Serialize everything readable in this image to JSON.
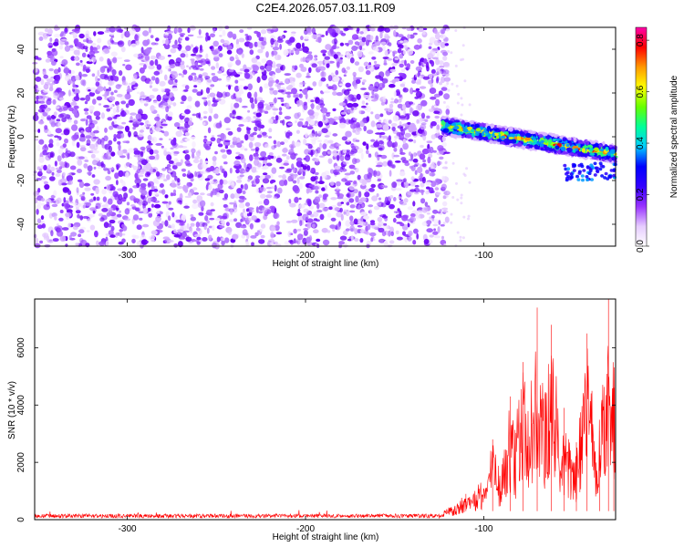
{
  "figure": {
    "title": "C2E4.2026.057.03.11.R09"
  },
  "chart_data": [
    {
      "type": "heatmap",
      "name": "spectrogram",
      "title": "C2E4.2026.057.03.11.R09",
      "xlabel": "Height of straight line (km)",
      "ylabel": "Frequency (Hz)",
      "xlim": [
        -352,
        -26
      ],
      "ylim": [
        -50,
        50
      ],
      "xticks": [
        -300,
        -200,
        -100
      ],
      "xtick_labels": [
        "-300",
        "-200",
        "-100"
      ],
      "yticks": [
        -40,
        -20,
        0,
        20,
        40
      ],
      "ytick_labels": [
        "-40",
        "-20",
        "0",
        "20",
        "40"
      ],
      "noise_region_x": [
        -352,
        -123
      ],
      "signal_band": {
        "x_start": -123,
        "x_end": -26,
        "freq_start": 5,
        "freq_end": -8,
        "width_hz": 4
      },
      "colorbar": {
        "label": "Normalized spectral amplitude",
        "range": [
          0,
          0.85
        ],
        "ticks": [
          0.0,
          0.2,
          0.4,
          0.6,
          0.8
        ],
        "tick_labels": [
          "0.0",
          "0.2",
          "0.4",
          "0.6",
          "0.8"
        ],
        "colors": [
          "#ffffff",
          "#e6ccff",
          "#9933ff",
          "#3300ff",
          "#0000ff",
          "#00ccff",
          "#00ff99",
          "#66ff00",
          "#ffff00",
          "#ff9900",
          "#ff0000",
          "#ff00aa"
        ]
      }
    },
    {
      "type": "line",
      "name": "snr",
      "xlabel": "Height of straight line (km)",
      "ylabel": "SNR (10 * v/v)",
      "xlim": [
        -352,
        -26
      ],
      "ylim": [
        0,
        7700
      ],
      "xticks": [
        -300,
        -200,
        -100
      ],
      "xtick_labels": [
        "-300",
        "-200",
        "-100"
      ],
      "yticks": [
        0,
        2000,
        4000,
        6000
      ],
      "ytick_labels": [
        "0",
        "2000",
        "4000",
        "6000"
      ],
      "color": "#ff0000",
      "series_summary": {
        "noise_level": 150,
        "noise_until_x": -125,
        "peaks": [
          {
            "x": -110,
            "y": 900
          },
          {
            "x": -95,
            "y": 2800
          },
          {
            "x": -85,
            "y": 4300
          },
          {
            "x": -78,
            "y": 5500
          },
          {
            "x": -70,
            "y": 7400
          },
          {
            "x": -62,
            "y": 6800
          },
          {
            "x": -55,
            "y": 3900
          },
          {
            "x": -48,
            "y": 2700
          },
          {
            "x": -42,
            "y": 6500
          },
          {
            "x": -35,
            "y": 3100
          },
          {
            "x": -30,
            "y": 7700
          },
          {
            "x": -27,
            "y": 4600
          }
        ]
      }
    }
  ]
}
